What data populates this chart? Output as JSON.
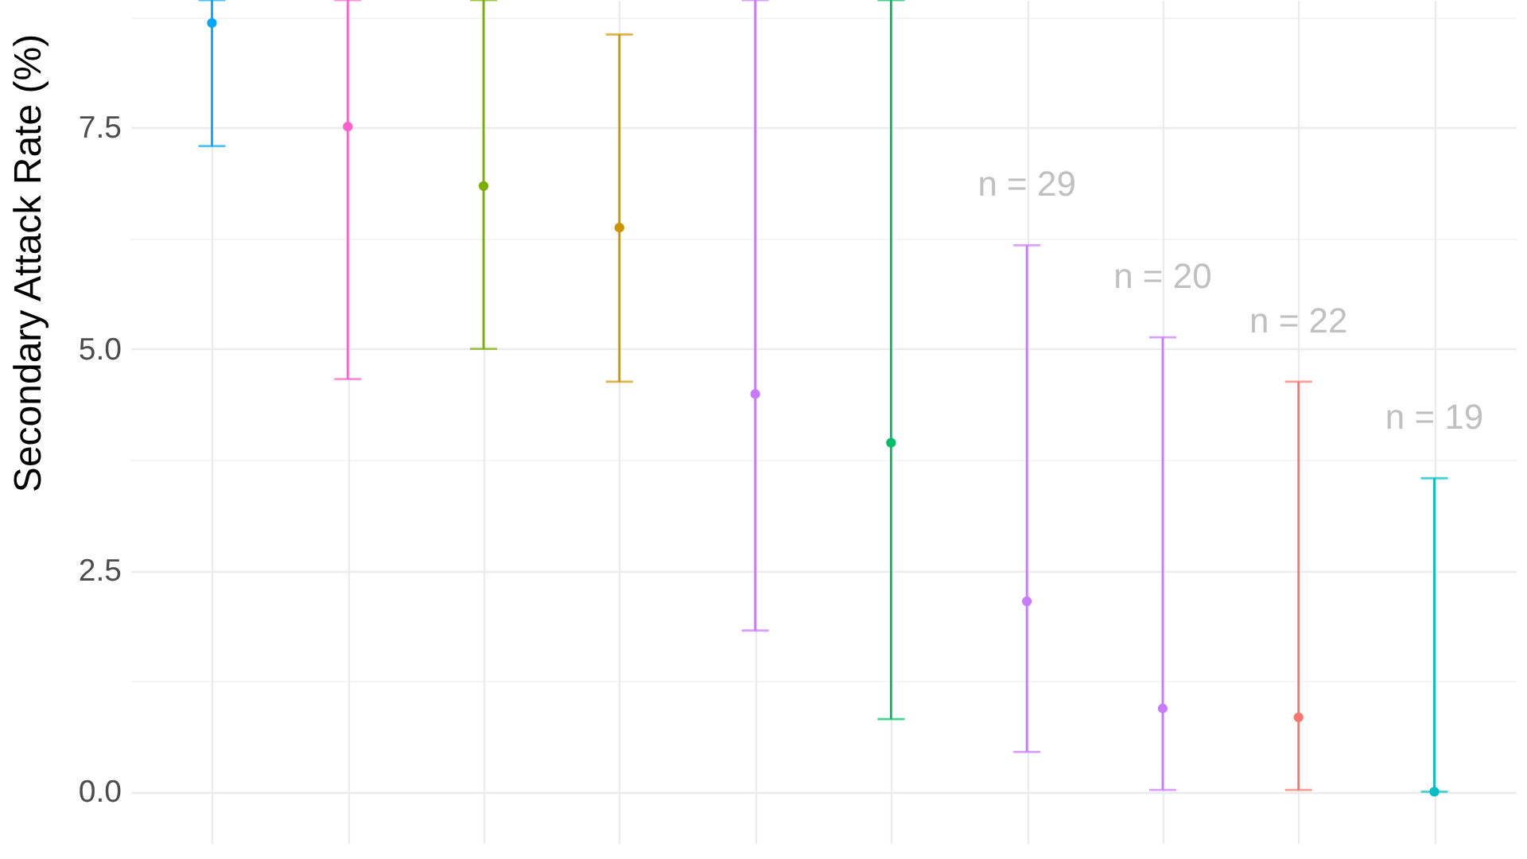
{
  "chart_data": {
    "type": "scatter",
    "ylabel": "Secondary Attack Rate (%)",
    "categories": [
      null,
      null,
      null,
      null,
      null,
      null,
      null,
      null,
      null,
      null
    ],
    "values": [
      8.68,
      7.51,
      6.84,
      6.37,
      4.49,
      3.94,
      2.15,
      0.94,
      0.84,
      0.0
    ],
    "errors": [
      [
        7.29,
        8.94
      ],
      [
        4.66,
        8.94
      ],
      [
        5.0,
        8.94
      ],
      [
        4.63,
        8.55
      ],
      [
        1.82,
        8.94
      ],
      [
        0.82,
        8.94
      ],
      [
        0.45,
        6.17
      ],
      [
        0.02,
        5.13
      ],
      [
        0.02,
        4.63
      ],
      [
        0.0,
        3.54
      ]
    ],
    "colors": [
      "#00a9ff",
      "#ff61cc",
      "#7cae00",
      "#cd9600",
      "#c77cff",
      "#00be67",
      "#c77cff",
      "#c77cff",
      "#f8766d",
      "#00bfc4"
    ],
    "annotations": [
      "n = 29",
      "n = 20",
      "n = 22",
      "n = 19"
    ],
    "marker": "circle",
    "ylim": [
      -0.58,
      8.94
    ],
    "yticks": [
      {
        "value": 0,
        "label": "0.0"
      },
      {
        "value": 1.25,
        "label": null
      },
      2.5,
      {
        "value": 3.75,
        "label": null
      },
      {
        "value": 5,
        "label": "5.0"
      },
      {
        "value": 6.25,
        "label": null
      },
      7.5,
      {
        "value": 8.75,
        "label": null
      }
    ],
    "grid": true,
    "tick_labels": "y"
  }
}
